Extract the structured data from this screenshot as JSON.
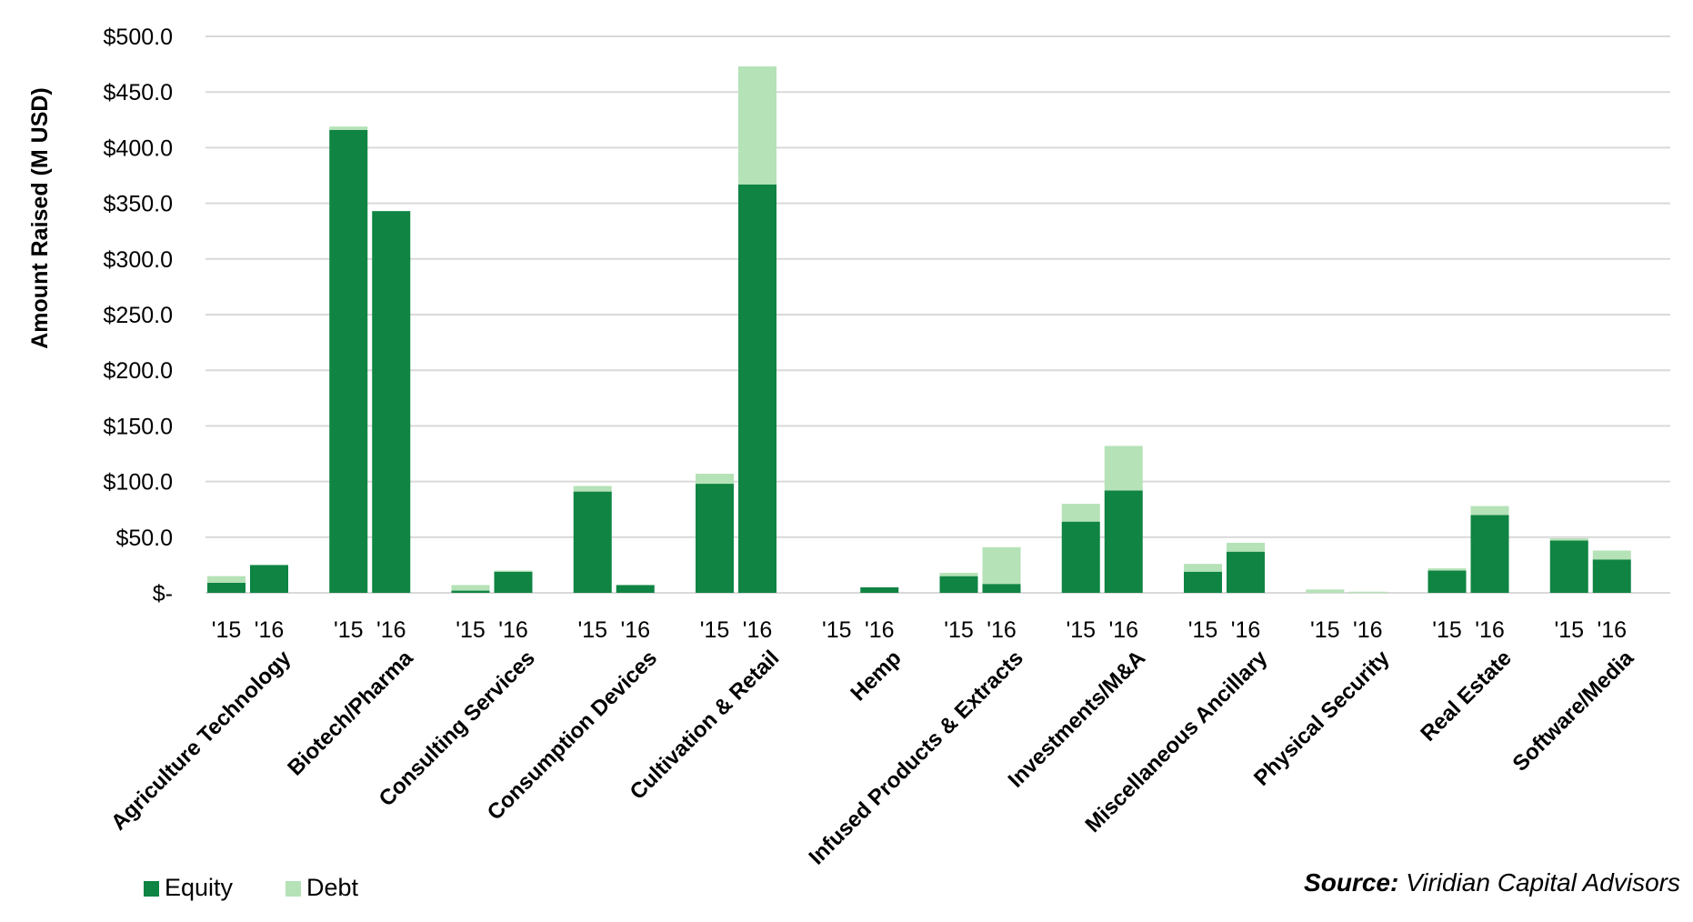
{
  "chart_data": {
    "type": "bar",
    "stacked": true,
    "title": "",
    "xlabel": "",
    "ylabel": "Amount Raised (M USD)",
    "ylim": [
      0,
      500
    ],
    "yticks": [
      0,
      50,
      100,
      150,
      200,
      250,
      300,
      350,
      400,
      450,
      500
    ],
    "ytick_labels": [
      "$-",
      "$50.0",
      "$100.0",
      "$150.0",
      "$200.0",
      "$250.0",
      "$300.0",
      "$350.0",
      "$400.0",
      "$450.0",
      "$500.0"
    ],
    "grid": true,
    "legend_position": "bottom-left",
    "colors": {
      "Equity": "#0F8443",
      "Debt": "#B5E2B7",
      "grid": "#D9D9D9"
    },
    "period_labels": [
      "'15",
      "'16"
    ],
    "categories": [
      "Agriculture Technology",
      "Biotech/Pharma",
      "Consulting Services",
      "Consumption Devices",
      "Cultivation & Retail",
      "Hemp",
      "Infused Products & Extracts",
      "Investments/M&A",
      "Miscellaneous Ancillary",
      "Physical Security",
      "Real Estate",
      "Software/Media"
    ],
    "series": [
      {
        "name": "Equity",
        "values_2015": [
          9,
          416,
          2,
          91,
          98,
          0,
          15,
          64,
          19,
          0,
          20,
          47
        ],
        "values_2016": [
          25,
          343,
          19,
          7,
          367,
          5,
          8,
          92,
          37,
          0,
          70,
          30
        ]
      },
      {
        "name": "Debt",
        "values_2015": [
          6,
          3,
          5,
          5,
          9,
          0,
          3,
          16,
          7,
          3,
          2,
          2
        ],
        "values_2016": [
          0,
          0,
          1,
          0,
          106,
          0,
          33,
          40,
          8,
          1,
          8,
          8
        ]
      }
    ]
  },
  "source": {
    "label": "Source:",
    "text": " Viridian Capital Advisors"
  }
}
